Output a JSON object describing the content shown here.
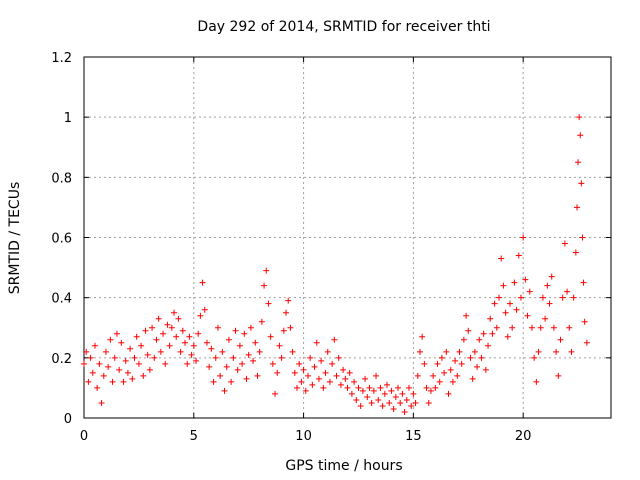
{
  "chart_data": {
    "type": "scatter",
    "title": "Day 292 of 2014, SRMTID for receiver thti",
    "xlabel": "GPS time / hours",
    "ylabel": "SRMTID / TECUs",
    "xlim": [
      0,
      24
    ],
    "ylim": [
      0,
      1.2
    ],
    "xticks": [
      0,
      5,
      10,
      15,
      20
    ],
    "xtick_labels": [
      "0",
      "5",
      "10",
      "15",
      "20"
    ],
    "yticks": [
      0,
      0.2,
      0.4,
      0.6,
      0.8,
      1.0,
      1.2
    ],
    "ytick_labels": [
      "0",
      "0.2",
      "0.4",
      "0.6",
      "0.8",
      "1",
      "1.2"
    ],
    "grid": true,
    "marker": "plus",
    "series": [
      {
        "name": "SRMTID",
        "color": "#ff0000",
        "points": [
          [
            0.0,
            0.18
          ],
          [
            0.1,
            0.22
          ],
          [
            0.2,
            0.12
          ],
          [
            0.3,
            0.2
          ],
          [
            0.4,
            0.15
          ],
          [
            0.5,
            0.24
          ],
          [
            0.6,
            0.1
          ],
          [
            0.7,
            0.18
          ],
          [
            0.8,
            0.05
          ],
          [
            0.9,
            0.14
          ],
          [
            1.0,
            0.22
          ],
          [
            1.1,
            0.17
          ],
          [
            1.2,
            0.26
          ],
          [
            1.3,
            0.12
          ],
          [
            1.4,
            0.2
          ],
          [
            1.5,
            0.28
          ],
          [
            1.6,
            0.16
          ],
          [
            1.7,
            0.25
          ],
          [
            1.8,
            0.12
          ],
          [
            1.9,
            0.19
          ],
          [
            2.0,
            0.15
          ],
          [
            2.1,
            0.23
          ],
          [
            2.2,
            0.13
          ],
          [
            2.3,
            0.2
          ],
          [
            2.4,
            0.27
          ],
          [
            2.5,
            0.18
          ],
          [
            2.6,
            0.24
          ],
          [
            2.7,
            0.14
          ],
          [
            2.8,
            0.29
          ],
          [
            2.9,
            0.21
          ],
          [
            3.0,
            0.16
          ],
          [
            3.1,
            0.3
          ],
          [
            3.2,
            0.2
          ],
          [
            3.3,
            0.26
          ],
          [
            3.4,
            0.33
          ],
          [
            3.5,
            0.22
          ],
          [
            3.6,
            0.28
          ],
          [
            3.7,
            0.18
          ],
          [
            3.8,
            0.31
          ],
          [
            3.9,
            0.24
          ],
          [
            4.0,
            0.3
          ],
          [
            4.1,
            0.35
          ],
          [
            4.2,
            0.27
          ],
          [
            4.3,
            0.33
          ],
          [
            4.4,
            0.22
          ],
          [
            4.5,
            0.29
          ],
          [
            4.6,
            0.25
          ],
          [
            4.7,
            0.18
          ],
          [
            4.8,
            0.27
          ],
          [
            4.9,
            0.21
          ],
          [
            5.0,
            0.24
          ],
          [
            5.1,
            0.19
          ],
          [
            5.2,
            0.28
          ],
          [
            5.3,
            0.34
          ],
          [
            5.4,
            0.45
          ],
          [
            5.5,
            0.36
          ],
          [
            5.6,
            0.25
          ],
          [
            5.7,
            0.17
          ],
          [
            5.8,
            0.23
          ],
          [
            5.9,
            0.12
          ],
          [
            6.0,
            0.2
          ],
          [
            6.1,
            0.3
          ],
          [
            6.2,
            0.14
          ],
          [
            6.3,
            0.22
          ],
          [
            6.4,
            0.09
          ],
          [
            6.5,
            0.17
          ],
          [
            6.6,
            0.26
          ],
          [
            6.7,
            0.12
          ],
          [
            6.8,
            0.2
          ],
          [
            6.9,
            0.29
          ],
          [
            7.0,
            0.16
          ],
          [
            7.1,
            0.24
          ],
          [
            7.2,
            0.18
          ],
          [
            7.3,
            0.28
          ],
          [
            7.4,
            0.13
          ],
          [
            7.5,
            0.21
          ],
          [
            7.6,
            0.3
          ],
          [
            7.7,
            0.19
          ],
          [
            7.8,
            0.25
          ],
          [
            7.9,
            0.14
          ],
          [
            8.0,
            0.22
          ],
          [
            8.1,
            0.32
          ],
          [
            8.2,
            0.44
          ],
          [
            8.3,
            0.49
          ],
          [
            8.4,
            0.38
          ],
          [
            8.5,
            0.27
          ],
          [
            8.6,
            0.18
          ],
          [
            8.7,
            0.08
          ],
          [
            8.8,
            0.15
          ],
          [
            8.9,
            0.24
          ],
          [
            9.0,
            0.2
          ],
          [
            9.1,
            0.29
          ],
          [
            9.2,
            0.35
          ],
          [
            9.3,
            0.39
          ],
          [
            9.4,
            0.3
          ],
          [
            9.5,
            0.22
          ],
          [
            9.6,
            0.15
          ],
          [
            9.7,
            0.1
          ],
          [
            9.8,
            0.18
          ],
          [
            9.9,
            0.12
          ],
          [
            10.0,
            0.16
          ],
          [
            10.1,
            0.09
          ],
          [
            10.2,
            0.14
          ],
          [
            10.3,
            0.2
          ],
          [
            10.4,
            0.11
          ],
          [
            10.5,
            0.17
          ],
          [
            10.6,
            0.25
          ],
          [
            10.7,
            0.13
          ],
          [
            10.8,
            0.19
          ],
          [
            10.9,
            0.1
          ],
          [
            11.0,
            0.15
          ],
          [
            11.1,
            0.22
          ],
          [
            11.2,
            0.12
          ],
          [
            11.3,
            0.18
          ],
          [
            11.4,
            0.26
          ],
          [
            11.5,
            0.14
          ],
          [
            11.6,
            0.2
          ],
          [
            11.7,
            0.11
          ],
          [
            11.8,
            0.16
          ],
          [
            11.9,
            0.13
          ],
          [
            12.0,
            0.1
          ],
          [
            12.1,
            0.15
          ],
          [
            12.2,
            0.08
          ],
          [
            12.3,
            0.12
          ],
          [
            12.4,
            0.06
          ],
          [
            12.5,
            0.1
          ],
          [
            12.6,
            0.04
          ],
          [
            12.7,
            0.09
          ],
          [
            12.8,
            0.13
          ],
          [
            12.9,
            0.07
          ],
          [
            13.0,
            0.1
          ],
          [
            13.1,
            0.05
          ],
          [
            13.2,
            0.09
          ],
          [
            13.3,
            0.14
          ],
          [
            13.4,
            0.06
          ],
          [
            13.5,
            0.1
          ],
          [
            13.6,
            0.04
          ],
          [
            13.7,
            0.08
          ],
          [
            13.8,
            0.11
          ],
          [
            13.9,
            0.05
          ],
          [
            14.0,
            0.09
          ],
          [
            14.1,
            0.03
          ],
          [
            14.2,
            0.07
          ],
          [
            14.3,
            0.1
          ],
          [
            14.4,
            0.05
          ],
          [
            14.5,
            0.08
          ],
          [
            14.6,
            0.02
          ],
          [
            14.7,
            0.06
          ],
          [
            14.8,
            0.1
          ],
          [
            14.9,
            0.04
          ],
          [
            15.0,
            0.08
          ],
          [
            15.1,
            0.05
          ],
          [
            15.2,
            0.14
          ],
          [
            15.3,
            0.22
          ],
          [
            15.4,
            0.27
          ],
          [
            15.5,
            0.18
          ],
          [
            15.6,
            0.1
          ],
          [
            15.7,
            0.05
          ],
          [
            15.8,
            0.09
          ],
          [
            15.9,
            0.14
          ],
          [
            16.0,
            0.1
          ],
          [
            16.1,
            0.18
          ],
          [
            16.2,
            0.12
          ],
          [
            16.3,
            0.2
          ],
          [
            16.4,
            0.15
          ],
          [
            16.5,
            0.22
          ],
          [
            16.6,
            0.08
          ],
          [
            16.7,
            0.16
          ],
          [
            16.8,
            0.12
          ],
          [
            16.9,
            0.19
          ],
          [
            17.0,
            0.14
          ],
          [
            17.1,
            0.22
          ],
          [
            17.2,
            0.18
          ],
          [
            17.3,
            0.26
          ],
          [
            17.4,
            0.34
          ],
          [
            17.5,
            0.29
          ],
          [
            17.6,
            0.2
          ],
          [
            17.7,
            0.13
          ],
          [
            17.8,
            0.22
          ],
          [
            17.9,
            0.17
          ],
          [
            18.0,
            0.26
          ],
          [
            18.1,
            0.2
          ],
          [
            18.2,
            0.28
          ],
          [
            18.3,
            0.16
          ],
          [
            18.4,
            0.24
          ],
          [
            18.5,
            0.33
          ],
          [
            18.6,
            0.28
          ],
          [
            18.7,
            0.38
          ],
          [
            18.8,
            0.3
          ],
          [
            18.9,
            0.4
          ],
          [
            19.0,
            0.53
          ],
          [
            19.1,
            0.44
          ],
          [
            19.2,
            0.35
          ],
          [
            19.3,
            0.27
          ],
          [
            19.4,
            0.38
          ],
          [
            19.5,
            0.3
          ],
          [
            19.6,
            0.45
          ],
          [
            19.7,
            0.36
          ],
          [
            19.8,
            0.54
          ],
          [
            19.9,
            0.4
          ],
          [
            20.0,
            0.6
          ],
          [
            20.1,
            0.46
          ],
          [
            20.2,
            0.34
          ],
          [
            20.3,
            0.42
          ],
          [
            20.4,
            0.3
          ],
          [
            20.5,
            0.2
          ],
          [
            20.6,
            0.12
          ],
          [
            20.7,
            0.22
          ],
          [
            20.8,
            0.3
          ],
          [
            20.9,
            0.4
          ],
          [
            21.0,
            0.33
          ],
          [
            21.1,
            0.44
          ],
          [
            21.2,
            0.38
          ],
          [
            21.3,
            0.47
          ],
          [
            21.4,
            0.3
          ],
          [
            21.5,
            0.22
          ],
          [
            21.6,
            0.14
          ],
          [
            21.7,
            0.26
          ],
          [
            21.8,
            0.4
          ],
          [
            21.9,
            0.58
          ],
          [
            22.0,
            0.42
          ],
          [
            22.1,
            0.3
          ],
          [
            22.2,
            0.22
          ],
          [
            22.3,
            0.4
          ],
          [
            22.4,
            0.55
          ],
          [
            22.45,
            0.7
          ],
          [
            22.5,
            0.85
          ],
          [
            22.55,
            1.0
          ],
          [
            22.6,
            0.94
          ],
          [
            22.65,
            0.78
          ],
          [
            22.7,
            0.6
          ],
          [
            22.75,
            0.45
          ],
          [
            22.8,
            0.32
          ],
          [
            22.9,
            0.25
          ]
        ]
      }
    ]
  }
}
